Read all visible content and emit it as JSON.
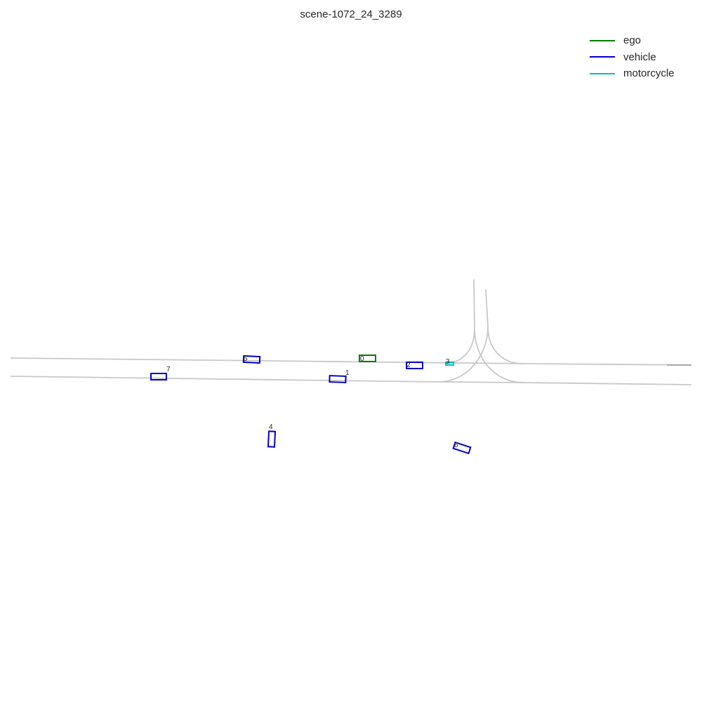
{
  "title": "scene-1072_24_3289",
  "legend": {
    "items": [
      {
        "label": "ego",
        "color": "#008000"
      },
      {
        "label": "vehicle",
        "color": "#0000cd"
      },
      {
        "label": "motorcycle",
        "color": "#00bfbf"
      }
    ]
  },
  "colors": {
    "lane": "#c8c8c8",
    "lane_dark": "#a0a0a0"
  },
  "agents": [
    {
      "id": "0",
      "type": "ego"
    },
    {
      "id": "1",
      "type": "vehicle"
    },
    {
      "id": "2",
      "type": "vehicle"
    },
    {
      "id": "3",
      "type": "motorcycle"
    },
    {
      "id": "4",
      "type": "vehicle"
    },
    {
      "id": "5",
      "type": "vehicle"
    },
    {
      "id": "6",
      "type": "vehicle"
    },
    {
      "id": "7",
      "type": "vehicle"
    }
  ]
}
